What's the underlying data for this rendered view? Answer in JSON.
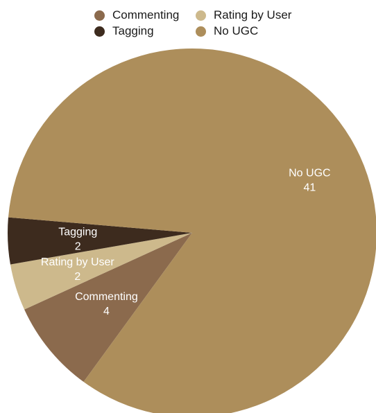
{
  "chart_data": {
    "type": "pie",
    "legend_position": "top",
    "slices": [
      {
        "name": "Commenting",
        "value": 4,
        "color": "#8b6a4d"
      },
      {
        "name": "Rating by User",
        "value": 2,
        "color": "#cdb98c"
      },
      {
        "name": "Tagging",
        "value": 2,
        "color": "#3d2b1e"
      },
      {
        "name": "No UGC",
        "value": 41,
        "color": "#ad8e5b"
      }
    ]
  }
}
